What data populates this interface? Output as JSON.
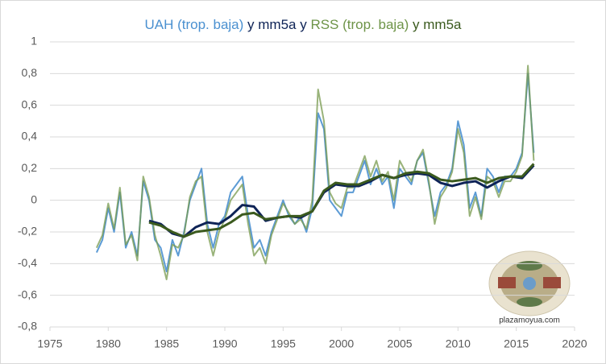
{
  "chart_data": {
    "type": "line",
    "title_parts": [
      {
        "text": "UAH (trop. baja)",
        "color": "#4a90d0"
      },
      {
        "text": " y mm5a",
        "color": "#0e2356"
      },
      {
        "text": " y ",
        "color": "#0e2356"
      },
      {
        "text": "RSS (trop. baja)",
        "color": "#6e9448"
      },
      {
        "text": " y mm5a",
        "color": "#3b5a1e"
      }
    ],
    "watermark": "plazamoyua.com",
    "xlim": [
      1975,
      2020
    ],
    "xticks": [
      1975,
      1980,
      1985,
      1990,
      1995,
      2000,
      2005,
      2010,
      2015,
      2020
    ],
    "ylim": [
      -0.8,
      1
    ],
    "yticks": [
      {
        "value": -0.8,
        "label": "-0,8"
      },
      {
        "value": -0.6,
        "label": "-0,6"
      },
      {
        "value": -0.4,
        "label": "-0,4"
      },
      {
        "value": -0.2,
        "label": "-0,2"
      },
      0,
      {
        "value": 0.2,
        "label": "0,2"
      },
      {
        "value": 0.4,
        "label": "0,4"
      },
      {
        "value": 0.6,
        "label": "0,6"
      },
      {
        "value": 0.8,
        "label": "0,8"
      },
      1
    ],
    "grid": true,
    "series": [
      {
        "color": "#4a90d0",
        "width": 2,
        "opacity": 0.9,
        "x": [
          1979,
          1979.5,
          1980,
          1980.5,
          1981,
          1981.5,
          1982,
          1982.5,
          1983,
          1983.5,
          1984,
          1984.5,
          1985,
          1985.5,
          1986,
          1986.5,
          1987,
          1987.5,
          1988,
          1988.5,
          1989,
          1989.5,
          1990,
          1990.5,
          1991,
          1991.5,
          1992,
          1992.5,
          1993,
          1993.5,
          1994,
          1994.5,
          1995,
          1995.5,
          1996,
          1996.5,
          1997,
          1997.5,
          1998,
          1998.5,
          1999,
          1999.5,
          2000,
          2000.5,
          2001,
          2001.5,
          2002,
          2002.5,
          2003,
          2003.5,
          2004,
          2004.5,
          2005,
          2005.5,
          2006,
          2006.5,
          2007,
          2007.5,
          2008,
          2008.5,
          2009,
          2009.5,
          2010,
          2010.5,
          2011,
          2011.5,
          2012,
          2012.5,
          2013,
          2013.5,
          2014,
          2014.5,
          2015,
          2015.5,
          2016,
          2016.5
        ],
        "values": [
          -0.33,
          -0.25,
          -0.05,
          -0.2,
          0.05,
          -0.3,
          -0.2,
          -0.35,
          0.12,
          0.0,
          -0.25,
          -0.3,
          -0.45,
          -0.25,
          -0.35,
          -0.2,
          0.0,
          0.1,
          0.2,
          -0.15,
          -0.3,
          -0.15,
          -0.1,
          0.05,
          0.1,
          0.15,
          -0.1,
          -0.3,
          -0.25,
          -0.35,
          -0.2,
          -0.1,
          0.0,
          -0.1,
          -0.15,
          -0.1,
          -0.2,
          -0.05,
          0.55,
          0.45,
          0.0,
          -0.05,
          -0.1,
          0.05,
          0.05,
          0.15,
          0.25,
          0.1,
          0.2,
          0.1,
          0.15,
          -0.05,
          0.2,
          0.15,
          0.1,
          0.25,
          0.3,
          0.1,
          -0.1,
          0.05,
          0.1,
          0.2,
          0.5,
          0.35,
          -0.05,
          0.05,
          -0.1,
          0.2,
          0.15,
          0.05,
          0.15,
          0.15,
          0.2,
          0.3,
          0.8,
          0.3
        ]
      },
      {
        "color": "#77994e",
        "width": 2,
        "opacity": 0.75,
        "x": [
          1979,
          1979.5,
          1980,
          1980.5,
          1981,
          1981.5,
          1982,
          1982.5,
          1983,
          1983.5,
          1984,
          1984.5,
          1985,
          1985.5,
          1986,
          1986.5,
          1987,
          1987.5,
          1988,
          1988.5,
          1989,
          1989.5,
          1990,
          1990.5,
          1991,
          1991.5,
          1992,
          1992.5,
          1993,
          1993.5,
          1994,
          1994.5,
          1995,
          1995.5,
          1996,
          1996.5,
          1997,
          1997.5,
          1998,
          1998.5,
          1999,
          1999.5,
          2000,
          2000.5,
          2001,
          2001.5,
          2002,
          2002.5,
          2003,
          2003.5,
          2004,
          2004.5,
          2005,
          2005.5,
          2006,
          2006.5,
          2007,
          2007.5,
          2008,
          2008.5,
          2009,
          2009.5,
          2010,
          2010.5,
          2011,
          2011.5,
          2012,
          2012.5,
          2013,
          2013.5,
          2014,
          2014.5,
          2015,
          2015.5,
          2016,
          2016.5
        ],
        "values": [
          -0.3,
          -0.22,
          -0.02,
          -0.18,
          0.08,
          -0.28,
          -0.22,
          -0.38,
          0.15,
          0.02,
          -0.22,
          -0.35,
          -0.5,
          -0.28,
          -0.3,
          -0.22,
          0.02,
          0.12,
          0.15,
          -0.2,
          -0.35,
          -0.2,
          -0.12,
          0.0,
          0.05,
          0.1,
          -0.15,
          -0.35,
          -0.3,
          -0.4,
          -0.22,
          -0.12,
          -0.02,
          -0.08,
          -0.15,
          -0.12,
          -0.18,
          0.0,
          0.7,
          0.5,
          0.05,
          -0.02,
          -0.05,
          0.08,
          0.08,
          0.18,
          0.28,
          0.15,
          0.25,
          0.12,
          0.18,
          0.0,
          0.25,
          0.18,
          0.12,
          0.25,
          0.32,
          0.12,
          -0.15,
          0.02,
          0.08,
          0.18,
          0.45,
          0.3,
          -0.1,
          0.02,
          -0.12,
          0.15,
          0.12,
          0.02,
          0.12,
          0.12,
          0.18,
          0.28,
          0.85,
          0.25
        ]
      },
      {
        "color": "#0e2356",
        "width": 3,
        "opacity": 1,
        "x": [
          1983.5,
          1984.5,
          1985.5,
          1986.5,
          1987.5,
          1988.5,
          1989.5,
          1990.5,
          1991.5,
          1992.5,
          1993.5,
          1994.5,
          1995.5,
          1996.5,
          1997.5,
          1998.5,
          1999.5,
          2000.5,
          2001.5,
          2002.5,
          2003.5,
          2004.5,
          2005.5,
          2006.5,
          2007.5,
          2008.5,
          2009.5,
          2010.5,
          2011.5,
          2012.5,
          2013.5,
          2014.5,
          2015.5,
          2016.5
        ],
        "values": [
          -0.13,
          -0.15,
          -0.21,
          -0.23,
          -0.17,
          -0.14,
          -0.15,
          -0.1,
          -0.03,
          -0.04,
          -0.13,
          -0.11,
          -0.1,
          -0.11,
          -0.07,
          0.05,
          0.1,
          0.09,
          0.09,
          0.12,
          0.16,
          0.14,
          0.16,
          0.17,
          0.16,
          0.11,
          0.09,
          0.11,
          0.12,
          0.08,
          0.12,
          0.15,
          0.14,
          0.22
        ]
      },
      {
        "color": "#3b5a1e",
        "width": 3,
        "opacity": 1,
        "x": [
          1983.5,
          1984.5,
          1985.5,
          1986.5,
          1987.5,
          1988.5,
          1989.5,
          1990.5,
          1991.5,
          1992.5,
          1993.5,
          1994.5,
          1995.5,
          1996.5,
          1997.5,
          1998.5,
          1999.5,
          2000.5,
          2001.5,
          2002.5,
          2003.5,
          2004.5,
          2005.5,
          2006.5,
          2007.5,
          2008.5,
          2009.5,
          2010.5,
          2011.5,
          2012.5,
          2013.5,
          2014.5,
          2015.5,
          2016.5
        ],
        "values": [
          -0.14,
          -0.16,
          -0.2,
          -0.23,
          -0.2,
          -0.19,
          -0.18,
          -0.14,
          -0.09,
          -0.08,
          -0.12,
          -0.11,
          -0.1,
          -0.1,
          -0.07,
          0.06,
          0.11,
          0.1,
          0.1,
          0.13,
          0.16,
          0.14,
          0.17,
          0.18,
          0.17,
          0.13,
          0.12,
          0.13,
          0.14,
          0.11,
          0.14,
          0.15,
          0.15,
          0.23
        ]
      }
    ]
  }
}
